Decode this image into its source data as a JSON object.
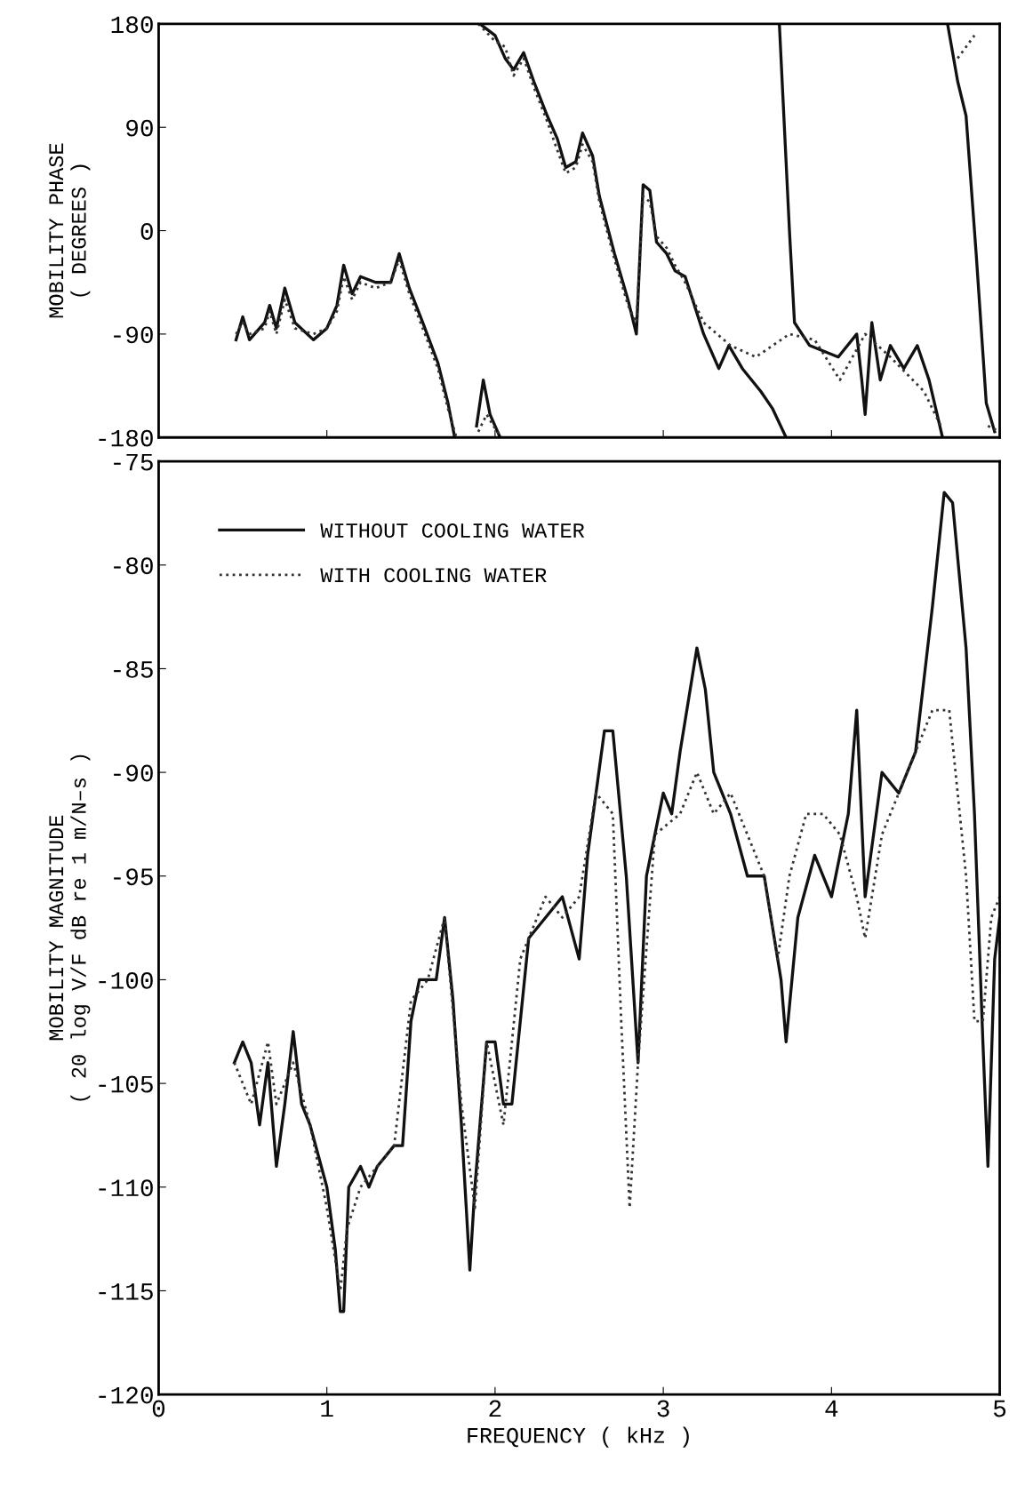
{
  "chart_data": [
    {
      "type": "line",
      "ylabel": "MOBILITY PHASE\n( DEGREES )",
      "xlim": [
        0,
        5
      ],
      "ylim": [
        -180,
        180
      ],
      "yticks": [
        -180,
        -90,
        0,
        90,
        180
      ],
      "xticks": [
        0,
        1,
        2,
        3,
        4,
        5
      ],
      "tick_labels": "y",
      "grid": false,
      "legend": false,
      "series": [
        {
          "color": "#111111",
          "line_style": "solid",
          "x": [
            0.46,
            0.5,
            0.54,
            0.63,
            0.66,
            0.7,
            0.75,
            0.81,
            0.92,
            1.0,
            1.06,
            1.1,
            1.15,
            1.2,
            1.29,
            1.38,
            1.43,
            1.49,
            1.57,
            1.66,
            1.72,
            1.76
          ],
          "values": [
            -95,
            -75,
            -95,
            -80,
            -65,
            -85,
            -50,
            -80,
            -95,
            -85,
            -65,
            -30,
            -55,
            -40,
            -45,
            -45,
            -20,
            -50,
            -80,
            -115,
            -150,
            -180
          ]
        },
        {
          "color": "#111111",
          "line_style": "solid",
          "x": [
            1.89,
            1.93,
            1.97,
            2.03
          ],
          "values": [
            -170,
            -130,
            -160,
            -180
          ]
        },
        {
          "color": "#111111",
          "line_style": "solid",
          "x": [
            1.91,
            2.0,
            2.06,
            2.11,
            2.17,
            2.23,
            2.31,
            2.37,
            2.42,
            2.48,
            2.52,
            2.58,
            2.62,
            2.71,
            2.79,
            2.84,
            2.88,
            2.92,
            2.96,
            3.02,
            3.07,
            3.13,
            3.24,
            3.33,
            3.39,
            3.47,
            3.58,
            3.65,
            3.73
          ],
          "values": [
            180,
            170,
            150,
            140,
            155,
            130,
            100,
            80,
            55,
            60,
            85,
            65,
            30,
            -20,
            -60,
            -90,
            40,
            35,
            -10,
            -20,
            -35,
            -40,
            -90,
            -120,
            -100,
            -120,
            -140,
            -155,
            -180
          ]
        },
        {
          "color": "#111111",
          "line_style": "solid",
          "x": [
            3.69,
            3.75,
            3.78,
            3.87,
            4.04,
            4.15,
            4.18,
            4.2,
            4.24,
            4.29,
            4.35,
            4.43,
            4.51,
            4.58,
            4.66
          ],
          "values": [
            180,
            0,
            -80,
            -100,
            -110,
            -90,
            -130,
            -160,
            -80,
            -130,
            -100,
            -120,
            -100,
            -130,
            -180
          ]
        },
        {
          "color": "#111111",
          "line_style": "solid",
          "x": [
            4.69,
            4.75,
            4.8,
            4.86,
            4.92,
            4.97
          ],
          "values": [
            180,
            130,
            100,
            -20,
            -150,
            -175
          ]
        },
        {
          "color": "#333333",
          "line_style": "dotted",
          "x": [
            0.46,
            0.5,
            0.54,
            0.63,
            0.66,
            0.7,
            0.75,
            0.81,
            0.92,
            1.0,
            1.06,
            1.1,
            1.15,
            1.2,
            1.29,
            1.38,
            1.43,
            1.49,
            1.57,
            1.66,
            1.72,
            1.77
          ],
          "values": [
            -90,
            -80,
            -90,
            -85,
            -70,
            -90,
            -60,
            -85,
            -90,
            -85,
            -70,
            -40,
            -60,
            -45,
            -50,
            -45,
            -25,
            -55,
            -85,
            -120,
            -155,
            -180
          ]
        },
        {
          "color": "#333333",
          "line_style": "dotted",
          "x": [
            1.9,
            1.95,
            1.99,
            2.04
          ],
          "values": [
            -175,
            -160,
            -170,
            -180
          ]
        },
        {
          "color": "#333333",
          "line_style": "dotted",
          "x": [
            1.9,
            2.0,
            2.06,
            2.11,
            2.17,
            2.23,
            2.31,
            2.37,
            2.42,
            2.48,
            2.52,
            2.58,
            2.62,
            2.71,
            2.79,
            2.84,
            2.88,
            2.92,
            2.96,
            3.02,
            3.07,
            3.13,
            3.24,
            3.4,
            3.55,
            3.75,
            3.9,
            4.05,
            4.2,
            4.35,
            4.55,
            4.65
          ],
          "values": [
            180,
            165,
            160,
            135,
            150,
            125,
            95,
            70,
            50,
            55,
            75,
            60,
            25,
            -25,
            -65,
            -80,
            30,
            25,
            -5,
            -15,
            -30,
            -45,
            -80,
            -100,
            -110,
            -90,
            -95,
            -130,
            -90,
            -110,
            -140,
            -170
          ]
        },
        {
          "color": "#333333",
          "line_style": "dotted",
          "x": [
            4.75,
            4.8,
            4.85
          ],
          "values": [
            150,
            160,
            170
          ]
        },
        {
          "color": "#333333",
          "line_style": "dotted",
          "x": [
            4.93,
            5.0
          ],
          "values": [
            -170,
            -175
          ]
        }
      ]
    },
    {
      "type": "line",
      "ylabel": "MOBILITY MAGNITUDE\n( 20 log V/F dB re 1 m/N–s )",
      "xlabel": "FREQUENCY ( kHz )",
      "xlim": [
        0,
        5
      ],
      "ylim": [
        -120,
        -75
      ],
      "xticks": [
        0,
        1,
        2,
        3,
        4,
        5
      ],
      "yticks": [
        -120,
        -115,
        -110,
        -105,
        -100,
        -95,
        -90,
        -85,
        -80,
        -75
      ],
      "grid": false,
      "legend": "top left",
      "series": [
        {
          "name": "WITHOUT COOLING WATER",
          "color": "#111111",
          "line_style": "solid",
          "x": [
            0.45,
            0.5,
            0.55,
            0.6,
            0.65,
            0.7,
            0.75,
            0.8,
            0.85,
            0.9,
            1.0,
            1.05,
            1.08,
            1.1,
            1.13,
            1.2,
            1.25,
            1.3,
            1.4,
            1.45,
            1.5,
            1.55,
            1.65,
            1.7,
            1.75,
            1.8,
            1.85,
            1.88,
            1.95,
            2.0,
            2.05,
            2.1,
            2.2,
            2.3,
            2.4,
            2.5,
            2.55,
            2.65,
            2.7,
            2.78,
            2.85,
            2.9,
            3.0,
            3.05,
            3.1,
            3.2,
            3.25,
            3.3,
            3.4,
            3.5,
            3.6,
            3.7,
            3.73,
            3.8,
            3.9,
            4.0,
            4.1,
            4.15,
            4.2,
            4.25,
            4.3,
            4.4,
            4.5,
            4.6,
            4.67,
            4.72,
            4.8,
            4.85,
            4.9,
            4.93,
            4.97,
            5.0
          ],
          "values": [
            -104,
            -103,
            -104,
            -107,
            -104,
            -109,
            -106,
            -102.5,
            -106,
            -107,
            -110,
            -113,
            -116,
            -116,
            -110,
            -109,
            -110,
            -109,
            -108,
            -108,
            -102,
            -100,
            -100,
            -97,
            -101,
            -107,
            -114,
            -110,
            -103,
            -103,
            -106,
            -106,
            -98,
            -97,
            -96,
            -99,
            -94,
            -88,
            -88,
            -95,
            -104,
            -95,
            -91,
            -92,
            -89,
            -84,
            -86,
            -90,
            -92,
            -95,
            -95,
            -100,
            -103,
            -97,
            -94,
            -96,
            -92,
            -87,
            -96,
            -93,
            -90,
            -91,
            -89,
            -82,
            -76.5,
            -77,
            -84,
            -92,
            -103,
            -109,
            -99,
            -97
          ]
        },
        {
          "name": "WITH COOLING WATER",
          "color": "#333333",
          "line_style": "dotted",
          "x": [
            0.45,
            0.55,
            0.65,
            0.7,
            0.8,
            0.9,
            1.0,
            1.08,
            1.12,
            1.2,
            1.3,
            1.4,
            1.5,
            1.6,
            1.7,
            1.8,
            1.88,
            1.95,
            2.05,
            2.15,
            2.3,
            2.4,
            2.5,
            2.6,
            2.7,
            2.75,
            2.8,
            2.85,
            2.95,
            3.1,
            3.2,
            3.3,
            3.4,
            3.5,
            3.6,
            3.68,
            3.75,
            3.85,
            3.95,
            4.05,
            4.15,
            4.2,
            4.3,
            4.4,
            4.5,
            4.6,
            4.7,
            4.8,
            4.85,
            4.9,
            4.95,
            5.0
          ],
          "values": [
            -104,
            -106,
            -103,
            -106,
            -104,
            -107,
            -111,
            -115,
            -112,
            -110,
            -109,
            -108,
            -101,
            -100,
            -97,
            -106,
            -111,
            -103,
            -107,
            -99,
            -96,
            -97,
            -96,
            -91,
            -92,
            -102,
            -111,
            -104,
            -93,
            -92,
            -90,
            -92,
            -91,
            -93,
            -95,
            -99,
            -95,
            -92,
            -92,
            -93,
            -96,
            -98,
            -93,
            -91,
            -89,
            -87,
            -87,
            -95,
            -102,
            -102,
            -97,
            -96
          ]
        }
      ]
    }
  ]
}
